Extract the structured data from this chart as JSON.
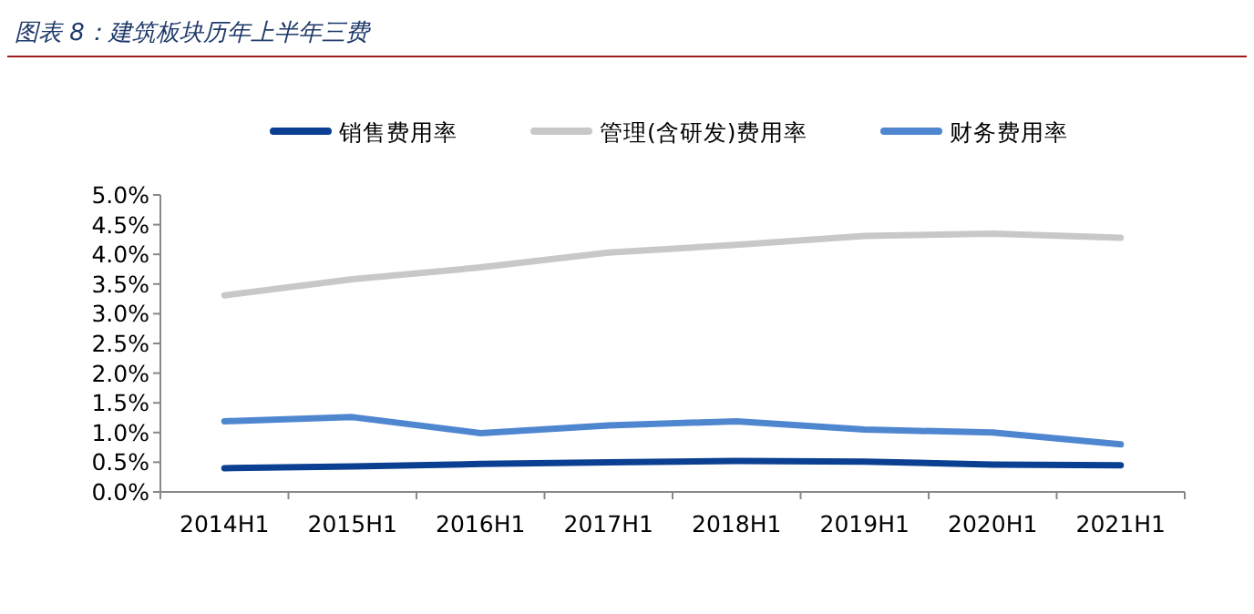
{
  "chart_data": {
    "type": "line",
    "title": "图表 8：建筑板块历年上半年三费",
    "categories": [
      "2014H1",
      "2015H1",
      "2016H1",
      "2017H1",
      "2018H1",
      "2019H1",
      "2020H1",
      "2021H1"
    ],
    "series": [
      {
        "name": "销售费用率",
        "color": "#0b3f91",
        "values": [
          0.4,
          0.43,
          0.47,
          0.5,
          0.52,
          0.51,
          0.46,
          0.45
        ]
      },
      {
        "name": "管理(含研发)费用率",
        "color": "#c8c8c8",
        "values": [
          3.31,
          3.58,
          3.78,
          4.03,
          4.16,
          4.31,
          4.35,
          4.28
        ]
      },
      {
        "name": "财务费用率",
        "color": "#4f86d0",
        "values": [
          1.19,
          1.26,
          0.99,
          1.12,
          1.19,
          1.05,
          1.0,
          0.8
        ]
      }
    ],
    "ylim": [
      0,
      5
    ],
    "yticks": [
      {
        "value": 0,
        "label": "0.0%"
      },
      {
        "value": 0.5,
        "label": "0.5%"
      },
      {
        "value": 1,
        "label": "1.0%"
      },
      {
        "value": 1.5,
        "label": "1.5%"
      },
      {
        "value": 2,
        "label": "2.0%"
      },
      {
        "value": 2.5,
        "label": "2.5%"
      },
      {
        "value": 3,
        "label": "3.0%"
      },
      {
        "value": 3.5,
        "label": "3.5%"
      },
      {
        "value": 4,
        "label": "4.0%"
      },
      {
        "value": 4.5,
        "label": "4.5%"
      },
      {
        "value": 5,
        "label": "5.0%"
      }
    ],
    "grid": false,
    "legend": "top",
    "marker": "none",
    "line_style": "solid"
  }
}
